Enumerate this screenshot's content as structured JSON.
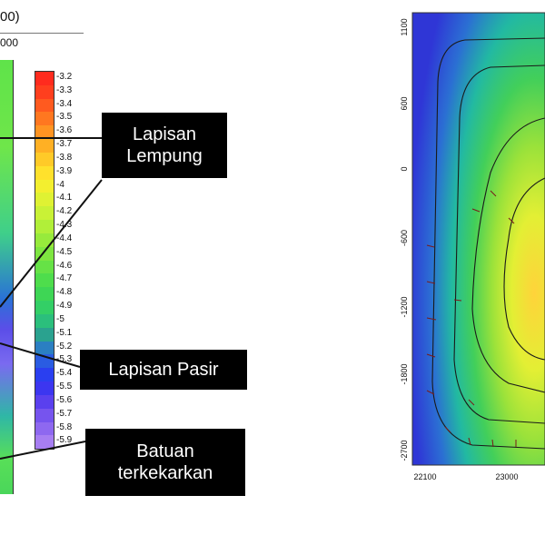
{
  "left_panel": {
    "header_text": "00)",
    "header_sub": "000",
    "colorbar": {
      "ticks": [
        "-3.2",
        "-3.3",
        "-3.4",
        "-3.5",
        "-3.6",
        "-3.7",
        "-3.8",
        "-3.9",
        "-4",
        "-4.1",
        "-4.2",
        "-4.3",
        "-4.4",
        "-4.5",
        "-4.6",
        "-4.7",
        "-4.8",
        "-4.9",
        "-5",
        "-5.1",
        "-5.2",
        "-5.3",
        "-5.4",
        "-5.5",
        "-5.6",
        "-5.7",
        "-5.8",
        "-5.9"
      ],
      "colors": [
        "#ff2b1e",
        "#ff3f1e",
        "#ff5a1f",
        "#ff7720",
        "#ff9422",
        "#ffb024",
        "#ffca28",
        "#ffe12c",
        "#f3ef2f",
        "#dff233",
        "#c9f236",
        "#b1ef39",
        "#97ea3c",
        "#7ee640",
        "#66e246",
        "#4edd4c",
        "#3ed655",
        "#33cf66",
        "#2bbf7c",
        "#2aa28f",
        "#2b7fc2",
        "#2a5ce2",
        "#2a3ff0",
        "#3c36f0",
        "#5a40ee",
        "#7654ee",
        "#8e68f0",
        "#a77ef2"
      ]
    },
    "callouts": [
      "Lapisan\nLempung",
      "Lapisan  Pasir",
      "Batuan\nterkekarkan"
    ]
  },
  "right_panel": {
    "y_ticks": [
      "1100",
      "600",
      "0",
      "-600",
      "-1200",
      "-1800",
      "-2700"
    ],
    "x_ticks": [
      "22100",
      "23000"
    ]
  }
}
